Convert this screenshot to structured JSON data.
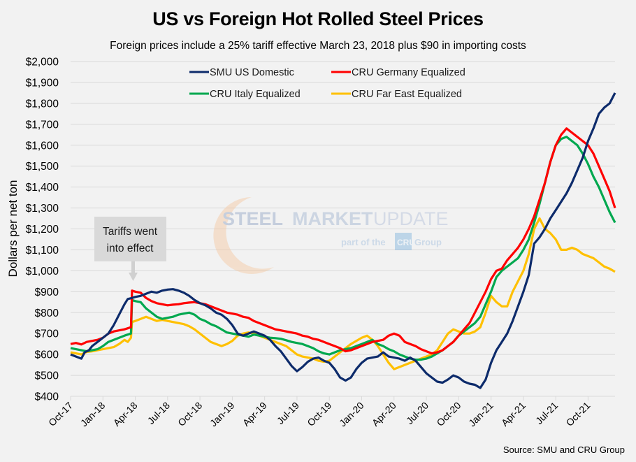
{
  "chart_data": {
    "type": "line",
    "title": "US vs Foreign Hot Rolled Steel Prices",
    "subtitle": "Foreign prices include a 25% tariff effective March 23, 2018 plus $90 in importing costs",
    "xlabel": "",
    "ylabel": "Dollars per net ton",
    "ylim": [
      400,
      2000
    ],
    "ytick_step": 100,
    "yticks": [
      "$400",
      "$500",
      "$600",
      "$700",
      "$800",
      "$900",
      "$1,000",
      "$1,100",
      "$1,200",
      "$1,300",
      "$1,400",
      "$1,500",
      "$1,600",
      "$1,700",
      "$1,800",
      "$1,900",
      "$2,000"
    ],
    "xticks": [
      "Oct-17",
      "Jan-18",
      "Apr-18",
      "Jul-18",
      "Oct-18",
      "Jan-19",
      "Apr-19",
      "Jul-19",
      "Oct-19",
      "Jan-20",
      "Apr-20",
      "Jul-20",
      "Oct-20",
      "Jan-21",
      "Apr-21",
      "Jul-21",
      "Oct-21"
    ],
    "x_unit": "months since Oct-2017",
    "xlim": [
      0,
      50.5
    ],
    "grid": true,
    "legend_position": "top-center",
    "annotation": {
      "text_line1": "Tariffs went",
      "text_line2": "into effect",
      "x": 5.7
    },
    "source": "Source: SMU and CRU Group",
    "watermark": {
      "line1a": "STEEL",
      "line1b": "MARKET",
      "line1c": "UPDATE",
      "line2a": "part of the",
      "line2b": "CRU",
      "line2c": "Group"
    },
    "series": [
      {
        "name": "SMU US Domestic",
        "color": "#0d2b6b",
        "x": [
          0,
          0.5,
          1,
          1.3,
          1.7,
          2,
          2.5,
          3,
          3.5,
          4,
          4.5,
          5,
          5.3,
          5.7,
          6,
          6.5,
          7,
          7.5,
          8,
          8.5,
          9,
          9.5,
          10,
          10.5,
          11,
          11.5,
          12,
          12.5,
          13,
          13.5,
          14,
          14.5,
          15,
          15.5,
          16,
          16.5,
          17,
          17.5,
          18,
          18.5,
          19,
          19.5,
          20,
          20.5,
          21,
          21.5,
          22,
          22.5,
          23,
          23.5,
          24,
          24.5,
          25,
          25.5,
          26,
          26.5,
          27,
          27.5,
          28,
          28.5,
          29,
          29.5,
          30,
          30.5,
          31,
          31.5,
          32,
          32.5,
          33,
          33.5,
          34,
          34.5,
          35,
          35.5,
          36,
          36.5,
          37,
          37.5,
          38,
          38.5,
          39,
          39.5,
          40,
          40.5,
          41,
          41.5,
          42,
          42.5,
          43,
          43.5,
          44,
          44.5,
          45,
          45.5,
          46,
          46.5,
          47,
          47.5,
          48,
          48.5,
          49,
          49.5,
          50,
          50.5
        ],
        "y": [
          600,
          590,
          580,
          610,
          620,
          640,
          660,
          680,
          700,
          740,
          790,
          840,
          865,
          870,
          875,
          880,
          890,
          900,
          895,
          905,
          910,
          912,
          905,
          895,
          880,
          860,
          845,
          835,
          820,
          800,
          790,
          770,
          740,
          700,
          690,
          700,
          710,
          700,
          690,
          670,
          640,
          615,
          580,
          545,
          520,
          540,
          565,
          580,
          585,
          570,
          560,
          530,
          490,
          475,
          490,
          530,
          560,
          580,
          585,
          590,
          610,
          590,
          585,
          580,
          570,
          585,
          570,
          540,
          510,
          490,
          470,
          465,
          480,
          500,
          490,
          470,
          460,
          455,
          440,
          480,
          560,
          620,
          660,
          700,
          760,
          830,
          900,
          980,
          1130,
          1160,
          1200,
          1250,
          1290,
          1330,
          1370,
          1420,
          1480,
          1540,
          1620,
          1680,
          1750,
          1780,
          1800,
          1850
        ]
      },
      {
        "name": "CRU Germany Equalized",
        "color": "#ff0000",
        "x": [
          0,
          0.5,
          1,
          1.5,
          2,
          2.5,
          3,
          3.5,
          4,
          4.5,
          5,
          5.3,
          5.6,
          5.7,
          6,
          6.5,
          7,
          7.5,
          8,
          8.5,
          9,
          9.5,
          10,
          10.5,
          11,
          11.5,
          12,
          12.5,
          13,
          13.5,
          14,
          14.5,
          15,
          15.5,
          16,
          16.5,
          17,
          17.5,
          18,
          18.5,
          19,
          19.5,
          20,
          20.5,
          21,
          21.5,
          22,
          22.5,
          23,
          23.5,
          24,
          24.5,
          25,
          25.5,
          26,
          26.5,
          27,
          27.5,
          28,
          28.5,
          29,
          29.5,
          30,
          30.5,
          31,
          31.5,
          32,
          32.5,
          33,
          33.5,
          34,
          34.5,
          35,
          35.5,
          36,
          36.5,
          37,
          37.5,
          38,
          38.5,
          39,
          39.5,
          40,
          40.5,
          41,
          41.5,
          42,
          42.5,
          43,
          43.5,
          44,
          44.5,
          45,
          45.5,
          46,
          46.5,
          47,
          47.5,
          48,
          48.5,
          49,
          49.5,
          50,
          50.5
        ],
        "y": [
          650,
          655,
          648,
          660,
          665,
          670,
          680,
          700,
          710,
          715,
          720,
          725,
          730,
          905,
          900,
          895,
          870,
          855,
          845,
          840,
          835,
          838,
          840,
          845,
          848,
          850,
          845,
          840,
          830,
          820,
          810,
          800,
          795,
          790,
          780,
          775,
          760,
          750,
          740,
          730,
          720,
          715,
          710,
          705,
          700,
          690,
          685,
          675,
          670,
          660,
          650,
          640,
          630,
          615,
          620,
          630,
          640,
          650,
          660,
          665,
          670,
          690,
          700,
          690,
          660,
          650,
          640,
          625,
          615,
          605,
          610,
          620,
          640,
          660,
          690,
          720,
          750,
          800,
          850,
          900,
          960,
          1000,
          1010,
          1050,
          1080,
          1110,
          1150,
          1200,
          1260,
          1340,
          1420,
          1520,
          1600,
          1650,
          1680,
          1660,
          1640,
          1620,
          1600,
          1560,
          1500,
          1440,
          1380,
          1300
        ]
      },
      {
        "name": "CRU Italy Equalized",
        "color": "#00a84f",
        "x": [
          0,
          0.5,
          1,
          1.5,
          2,
          2.5,
          3,
          3.5,
          4,
          4.5,
          5,
          5.3,
          5.6,
          5.7,
          6,
          6.5,
          7,
          7.5,
          8,
          8.5,
          9,
          9.5,
          10,
          10.5,
          11,
          11.5,
          12,
          12.5,
          13,
          13.5,
          14,
          14.5,
          15,
          15.5,
          16,
          16.5,
          17,
          17.5,
          18,
          18.5,
          19,
          19.5,
          20,
          20.5,
          21,
          21.5,
          22,
          22.5,
          23,
          23.5,
          24,
          24.5,
          25,
          25.5,
          26,
          26.5,
          27,
          27.5,
          28,
          28.5,
          29,
          29.5,
          30,
          30.5,
          31,
          31.5,
          32,
          32.5,
          33,
          33.5,
          34,
          34.5,
          35,
          35.5,
          36,
          36.5,
          37,
          37.5,
          38,
          38.5,
          39,
          39.5,
          40,
          40.5,
          41,
          41.5,
          42,
          42.5,
          43,
          43.5,
          44,
          44.5,
          45,
          45.5,
          46,
          46.5,
          47,
          47.5,
          48,
          48.5,
          49,
          49.5,
          50,
          50.5
        ],
        "y": [
          630,
          625,
          620,
          615,
          620,
          625,
          640,
          660,
          670,
          680,
          690,
          695,
          700,
          860,
          855,
          850,
          820,
          800,
          780,
          770,
          775,
          780,
          790,
          795,
          800,
          790,
          770,
          760,
          745,
          735,
          720,
          705,
          700,
          695,
          690,
          685,
          695,
          690,
          685,
          680,
          678,
          675,
          668,
          660,
          655,
          650,
          640,
          630,
          615,
          605,
          600,
          610,
          620,
          625,
          630,
          640,
          650,
          660,
          670,
          650,
          640,
          625,
          615,
          600,
          590,
          580,
          575,
          575,
          580,
          590,
          605,
          620,
          640,
          660,
          690,
          710,
          730,
          750,
          780,
          840,
          900,
          970,
          1000,
          1020,
          1040,
          1060,
          1100,
          1150,
          1230,
          1320,
          1420,
          1520,
          1600,
          1630,
          1640,
          1620,
          1600,
          1560,
          1510,
          1450,
          1400,
          1340,
          1280,
          1230
        ]
      },
      {
        "name": "CRU Far East Equalized",
        "color": "#ffc000",
        "x": [
          0,
          0.5,
          1,
          1.5,
          2,
          2.5,
          3,
          3.5,
          4,
          4.5,
          5,
          5.3,
          5.6,
          5.7,
          6,
          6.5,
          7,
          7.5,
          8,
          8.5,
          9,
          9.5,
          10,
          10.5,
          11,
          11.5,
          12,
          12.5,
          13,
          13.5,
          14,
          14.5,
          15,
          15.5,
          16,
          16.5,
          17,
          17.5,
          18,
          18.5,
          19,
          19.5,
          20,
          20.5,
          21,
          21.5,
          22,
          22.5,
          23,
          23.5,
          24,
          24.5,
          25,
          25.5,
          26,
          26.5,
          27,
          27.5,
          28,
          28.5,
          29,
          29.5,
          30,
          30.5,
          31,
          31.5,
          32,
          32.5,
          33,
          33.5,
          34,
          34.5,
          35,
          35.5,
          36,
          36.5,
          37,
          37.5,
          38,
          38.5,
          39,
          39.5,
          40,
          40.5,
          41,
          41.5,
          42,
          42.5,
          43,
          43.5,
          44,
          44.5,
          45,
          45.5,
          46,
          46.5,
          47,
          47.5,
          48,
          48.5,
          49,
          49.5,
          50,
          50.5
        ],
        "y": [
          610,
          605,
          600,
          612,
          615,
          620,
          625,
          630,
          635,
          650,
          670,
          660,
          680,
          755,
          760,
          770,
          780,
          770,
          760,
          765,
          760,
          755,
          750,
          745,
          735,
          720,
          700,
          680,
          660,
          650,
          640,
          650,
          665,
          690,
          700,
          705,
          700,
          690,
          680,
          670,
          660,
          650,
          640,
          620,
          600,
          590,
          585,
          580,
          570,
          565,
          570,
          590,
          610,
          630,
          650,
          665,
          680,
          690,
          670,
          640,
          600,
          560,
          530,
          540,
          550,
          560,
          570,
          580,
          590,
          600,
          620,
          660,
          700,
          720,
          710,
          700,
          700,
          710,
          730,
          800,
          880,
          850,
          830,
          830,
          900,
          950,
          1000,
          1080,
          1200,
          1250,
          1200,
          1180,
          1150,
          1100,
          1100,
          1110,
          1100,
          1080,
          1070,
          1060,
          1040,
          1020,
          1010,
          995
        ]
      }
    ]
  }
}
